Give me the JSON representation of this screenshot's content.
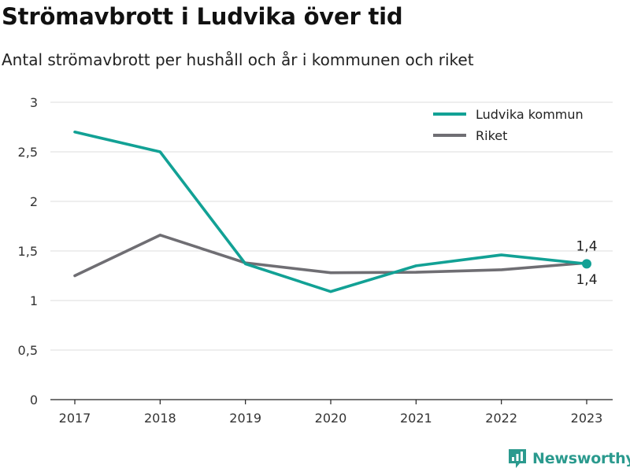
{
  "header": {
    "title": "Strömavbrott i Ludvika över tid",
    "subtitle": "Antal strömavbrott per hushåll och år i kommunen och riket"
  },
  "brand": {
    "name": "Newsworthy",
    "icon": "newsworthy-logo-icon",
    "color": "#2b9a8e"
  },
  "chart_data": {
    "type": "line",
    "x": [
      "2017",
      "2018",
      "2019",
      "2020",
      "2021",
      "2022",
      "2023"
    ],
    "series": [
      {
        "name": "Ludvika kommun",
        "color": "#12a195",
        "values": [
          2.7,
          2.5,
          1.37,
          1.09,
          1.35,
          1.46,
          1.37
        ]
      },
      {
        "name": "Riket",
        "color": "#6f6e73",
        "values": [
          1.25,
          1.66,
          1.38,
          1.28,
          1.285,
          1.31,
          1.38
        ]
      }
    ],
    "ylim": [
      0,
      3
    ],
    "y_ticks": [
      {
        "value": 0,
        "label": "0"
      },
      {
        "value": 0.5,
        "label": "0,5"
      },
      {
        "value": 1,
        "label": "1"
      },
      {
        "value": 1.5,
        "label": "1,5"
      },
      {
        "value": 2,
        "label": "2"
      },
      {
        "value": 2.5,
        "label": "2,5"
      },
      {
        "value": 3,
        "label": "3"
      }
    ],
    "annotations": [
      {
        "series": "Ludvika kommun",
        "x": "2023",
        "label": "1,4",
        "position": "above"
      },
      {
        "series": "Riket",
        "x": "2023",
        "label": "1,4",
        "position": "below"
      }
    ],
    "grid": true,
    "legend_position": "top-right",
    "xlabel": "",
    "ylabel": ""
  }
}
